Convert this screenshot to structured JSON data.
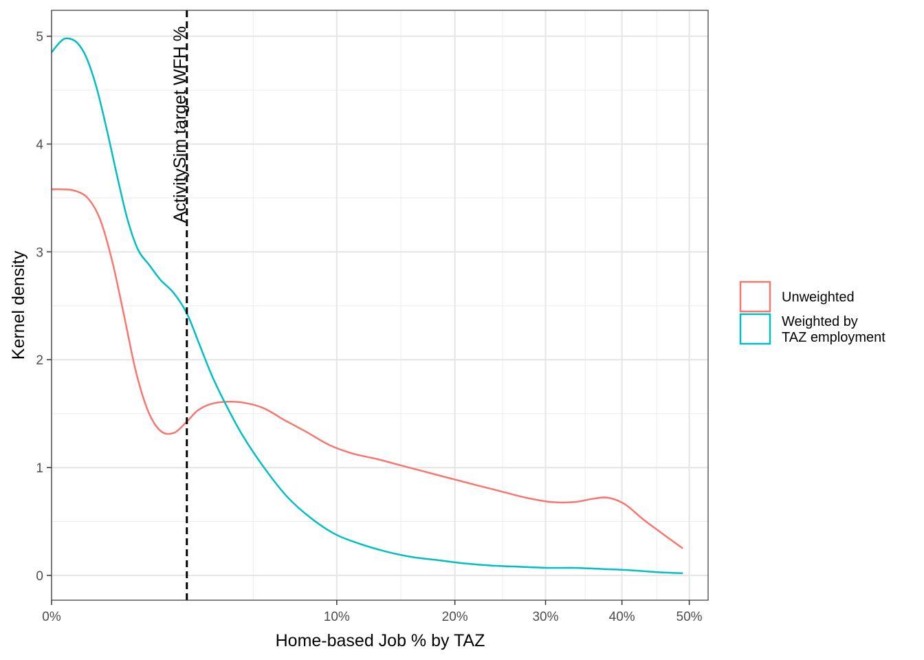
{
  "chart_data": {
    "type": "line",
    "title": "",
    "xlabel": "Home-based Job % by TAZ",
    "ylabel": "Kernel density",
    "x_scale": "sqrt",
    "xlim": [
      0,
      0.53
    ],
    "ylim": [
      -0.23,
      5.24
    ],
    "x_ticks": [
      {
        "value": 0,
        "label": "0%"
      },
      {
        "value": 0.1,
        "label": "10%"
      },
      {
        "value": 0.2,
        "label": "20%"
      },
      {
        "value": 0.3,
        "label": "30%"
      },
      {
        "value": 0.4,
        "label": "40%"
      },
      {
        "value": 0.5,
        "label": "50%"
      }
    ],
    "x_minor_ticks": [
      0.05,
      0.15,
      0.25,
      0.35,
      0.45
    ],
    "y_ticks": [
      {
        "value": 0,
        "label": "0"
      },
      {
        "value": 1,
        "label": "1"
      },
      {
        "value": 2,
        "label": "2"
      },
      {
        "value": 3,
        "label": "3"
      },
      {
        "value": 4,
        "label": "4"
      },
      {
        "value": 5,
        "label": "5"
      }
    ],
    "y_minor_ticks": [
      0.5,
      1.5,
      2.5,
      3.5,
      4.5
    ],
    "grid": true,
    "legend": {
      "position": "right",
      "entries": [
        "Unweighted",
        "Weighted by\nTAZ employment"
      ]
    },
    "annotation": {
      "type": "vline",
      "x": 0.0225,
      "label": "ActivitySim target WFH %",
      "style": "dashed",
      "color": "#000000"
    },
    "series": [
      {
        "name": "Unweighted",
        "color": "#F8766D",
        "x": [
          0,
          0.0001,
          0.0006,
          0.0016,
          0.0029,
          0.0045,
          0.0065,
          0.0088,
          0.0115,
          0.0146,
          0.0183,
          0.0223,
          0.0263,
          0.0313,
          0.0378,
          0.0457,
          0.0554,
          0.0667,
          0.0799,
          0.0947,
          0.1114,
          0.1298,
          0.1501,
          0.1719,
          0.1953,
          0.2206,
          0.2479,
          0.2769,
          0.3075,
          0.3363,
          0.3599,
          0.3808,
          0.4041,
          0.4303,
          0.4581,
          0.49
        ],
        "y": [
          3.58,
          3.58,
          3.57,
          3.5,
          3.3,
          2.92,
          2.4,
          1.88,
          1.52,
          1.34,
          1.32,
          1.42,
          1.53,
          1.59,
          1.61,
          1.6,
          1.55,
          1.44,
          1.33,
          1.21,
          1.13,
          1.08,
          1.02,
          0.96,
          0.9,
          0.84,
          0.78,
          0.72,
          0.68,
          0.68,
          0.71,
          0.72,
          0.66,
          0.52,
          0.39,
          0.25
        ]
      },
      {
        "name": "Weighted by\nTAZ employment",
        "color": "#00BFC4",
        "x": [
          0,
          0.0001,
          0.0003,
          0.0008,
          0.0015,
          0.0025,
          0.0038,
          0.0053,
          0.0071,
          0.0092,
          0.0117,
          0.0146,
          0.0183,
          0.0225,
          0.0266,
          0.0313,
          0.0365,
          0.0445,
          0.0555,
          0.0682,
          0.0828,
          0.0992,
          0.1175,
          0.1379,
          0.16,
          0.1845,
          0.2108,
          0.239,
          0.2692,
          0.3017,
          0.3363,
          0.3703,
          0.4065,
          0.4504,
          0.49
        ],
        "y": [
          4.85,
          4.95,
          4.98,
          4.94,
          4.8,
          4.52,
          4.12,
          3.7,
          3.3,
          3.02,
          2.88,
          2.74,
          2.62,
          2.43,
          2.16,
          1.87,
          1.62,
          1.31,
          1.0,
          0.73,
          0.53,
          0.38,
          0.29,
          0.22,
          0.17,
          0.14,
          0.11,
          0.09,
          0.08,
          0.07,
          0.07,
          0.06,
          0.05,
          0.03,
          0.02
        ]
      }
    ]
  }
}
